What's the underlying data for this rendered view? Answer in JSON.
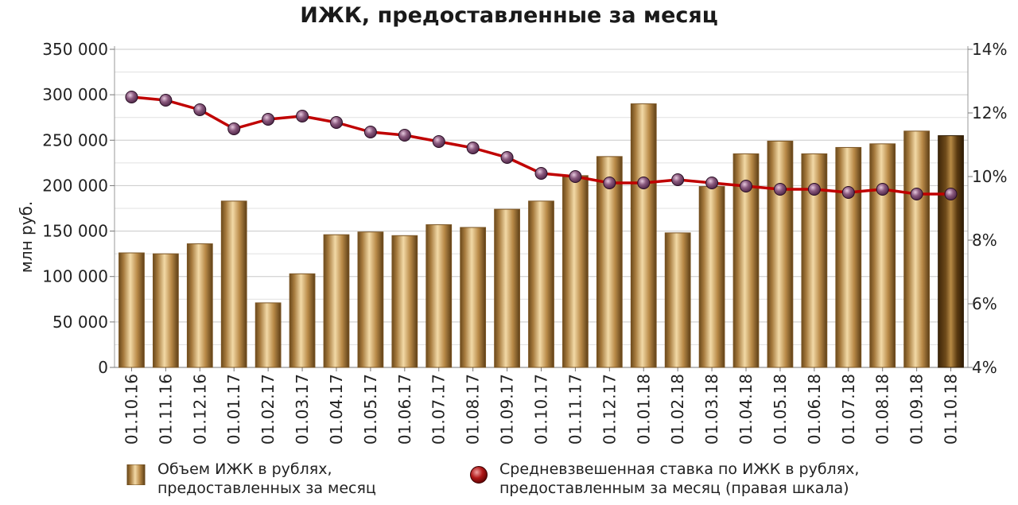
{
  "chart_data": {
    "type": "bar",
    "title": "ИЖК, предоставленные за месяц",
    "ylabel": "млн руб.",
    "ylim": [
      0,
      350000
    ],
    "y_ticks": [
      "0",
      "50 000",
      "100 000",
      "150 000",
      "200 000",
      "250 000",
      "300 000",
      "350 000"
    ],
    "y2lim": [
      4,
      14
    ],
    "y2_ticks": [
      "4%",
      "6%",
      "8%",
      "10%",
      "12%",
      "14%"
    ],
    "categories": [
      "01.10.16",
      "01.11.16",
      "01.12.16",
      "01.01.17",
      "01.02.17",
      "01.03.17",
      "01.04.17",
      "01.05.17",
      "01.06.17",
      "01.07.17",
      "01.08.17",
      "01.09.17",
      "01.10.17",
      "01.11.17",
      "01.12.17",
      "01.01.18",
      "01.02.18",
      "01.03.18",
      "01.04.18",
      "01.05.18",
      "01.06.18",
      "01.07.18",
      "01.08.18",
      "01.09.18",
      "01.10.18"
    ],
    "series": [
      {
        "name": "Объем ИЖК в рублях, предоставленных за месяц",
        "legend_lines": [
          "Объем ИЖК в рублях,",
          "предоставленных за месяц"
        ],
        "type": "bar",
        "axis": "left",
        "color": "#b8884a",
        "values": [
          126000,
          125000,
          136000,
          183000,
          71000,
          103000,
          146000,
          149000,
          145000,
          157000,
          154000,
          174000,
          183000,
          211000,
          232000,
          290000,
          148000,
          199000,
          235000,
          249000,
          235000,
          242000,
          246000,
          260000,
          255000
        ]
      },
      {
        "name": "Средневзвешенная ставка по ИЖК в рублях, предоставленным за месяц (правая шкала)",
        "legend_lines": [
          "Средневзвешенная ставка по ИЖК  в рублях,",
          "предоставленным за месяц (правая шкала)"
        ],
        "type": "line",
        "axis": "right",
        "color": "#c00000",
        "values": [
          12.5,
          12.4,
          12.1,
          11.5,
          11.8,
          11.9,
          11.7,
          11.4,
          11.3,
          11.1,
          10.9,
          10.6,
          10.1,
          10.0,
          9.8,
          9.8,
          9.9,
          9.8,
          9.7,
          9.6,
          9.6,
          9.5,
          9.6,
          9.45,
          9.45
        ]
      }
    ],
    "grid": true,
    "legend_position": "bottom"
  }
}
